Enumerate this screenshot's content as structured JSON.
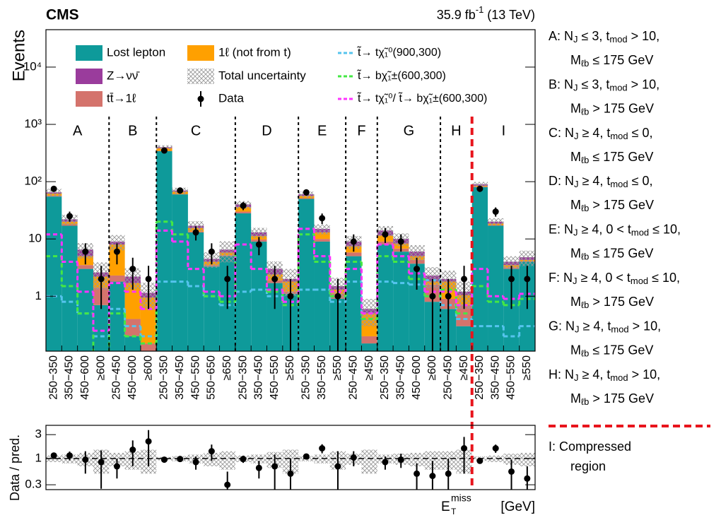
{
  "chart_data": [
    {
      "type": "bar",
      "stacked": true,
      "log_scale": true,
      "title": "CMS",
      "luminosity": [
        {
          "text": "35.9 fb"
        },
        {
          "sup": "-1"
        },
        {
          "text": " (13 TeV)"
        }
      ],
      "y_label": "Events",
      "groups": [
        {
          "name": "A",
          "categories": [
            "250−350",
            "350−450",
            "450−600",
            "≥600"
          ]
        },
        {
          "name": "B",
          "categories": [
            "250−450",
            "450−600",
            "≥600"
          ]
        },
        {
          "name": "C",
          "categories": [
            "250−350",
            "350−450",
            "450−550",
            "550−650",
            "≥650"
          ]
        },
        {
          "name": "D",
          "categories": [
            "250−350",
            "350−450",
            "450−550",
            "≥550"
          ]
        },
        {
          "name": "E",
          "categories": [
            "250−350",
            "350−550",
            "≥550"
          ]
        },
        {
          "name": "F",
          "categories": [
            "250−450",
            "≥450"
          ]
        },
        {
          "name": "G",
          "categories": [
            "250−350",
            "350−450",
            "450−600",
            "≥600"
          ]
        },
        {
          "name": "H",
          "categories": [
            "250−450",
            "≥450"
          ]
        },
        {
          "name": "I",
          "categories": [
            "250−350",
            "350−450",
            "450−550",
            "≥550"
          ]
        }
      ],
      "series": [
        {
          "name": "Lost lepton",
          "type": "stack",
          "color": "#0e9a9a",
          "values": [
            55,
            17,
            3,
            0.7,
            1.8,
            0.2,
            0.1,
            340,
            60,
            13,
            3.3,
            5,
            28,
            9,
            1.7,
            1.1,
            50,
            9,
            0.9,
            5,
            0.15,
            8,
            6,
            3.7,
            0.8,
            0.6,
            0.3,
            80,
            17,
            3,
            4
          ]
        },
        {
          "name": "tt̄→1ℓ",
          "type": "stack",
          "color": "#d4736c",
          "values": [
            2,
            1,
            0.5,
            0.7,
            0.5,
            0.2,
            0.05,
            5,
            1,
            0.5,
            0.2,
            0.2,
            2,
            0.8,
            0.2,
            0.1,
            1.5,
            1,
            0.2,
            0.8,
            0.05,
            1,
            0.8,
            0.6,
            0.8,
            0.3,
            0.4,
            2,
            0.5,
            0.2,
            0.1
          ]
        },
        {
          "name": "1ℓ (not from t)",
          "type": "stack",
          "color": "#ffa000",
          "values": [
            5,
            2,
            1.5,
            0.8,
            5.7,
            1.3,
            0.8,
            40,
            6,
            2,
            0.5,
            0.6,
            6,
            1.5,
            0.5,
            0.6,
            5,
            3,
            0.2,
            1.7,
            0.3,
            2.5,
            1.5,
            0.7,
            0.2,
            0.9,
            0.35,
            3,
            1,
            0.3,
            0.2
          ]
        },
        {
          "name": "Z→νν̄",
          "type": "stack",
          "color": "#9a3c9c",
          "values": [
            3,
            2,
            1.5,
            0.4,
            1,
            0.5,
            0.2,
            15,
            3,
            1.5,
            0.5,
            0.7,
            4,
            1.7,
            0.6,
            0.2,
            3.5,
            2,
            0.2,
            1.5,
            0.1,
            2.5,
            1.7,
            1,
            0.5,
            0.2,
            0.15,
            5,
            1.5,
            0.5,
            0.5
          ]
        },
        {
          "name": "t̃→ tχ̃₁⁰(900,300)",
          "type": "step",
          "color": "#55c4ee",
          "values": [
            1,
            0.8,
            0.5,
            0.2,
            0.6,
            0.3,
            0.2,
            1.8,
            1.8,
            1.5,
            1,
            0.7,
            1.2,
            1.3,
            1,
            0.8,
            1.3,
            1.3,
            0.8,
            1.8,
            0.5,
            1.8,
            1.7,
            1.6,
            1.9,
            0.7,
            0.4,
            0.3,
            0.3,
            0.2,
            0.3
          ]
        },
        {
          "name": "t̃→ bχ̃₁±(600,300)",
          "type": "step",
          "color": "#44e844",
          "values": [
            5,
            1.5,
            0.5,
            0.1,
            0.5,
            0.2,
            0.15,
            20,
            12,
            3,
            1,
            0.8,
            8,
            3,
            1.2,
            0.7,
            12,
            4,
            1,
            4,
            0.4,
            5,
            4,
            2,
            1,
            1.3,
            0.5,
            1.5,
            0.8,
            0.7,
            0.9
          ]
        },
        {
          "name": "t̃→ tχ̃₁⁰/ t̃→ bχ̃₁±(600,300)",
          "type": "step",
          "color": "#ff33ff",
          "values": [
            12,
            4,
            1.2,
            0.25,
            1.7,
            1.2,
            0.6,
            14,
            9,
            3,
            1.2,
            1,
            8,
            3,
            1.3,
            0.8,
            15,
            5,
            1.2,
            3,
            0.5,
            8,
            5,
            2.5,
            1.2,
            1.2,
            0.7,
            3,
            1,
            0.9,
            1.1
          ]
        },
        {
          "name": "Data",
          "type": "points",
          "color": "#000000",
          "values": [
            75,
            25,
            6,
            2,
            6,
            3,
            2,
            350,
            70,
            13,
            6,
            2,
            38,
            8,
            2,
            1,
            65,
            23,
            1,
            9,
            null,
            12,
            9,
            3,
            1,
            1,
            2,
            75,
            30,
            2,
            2
          ],
          "errors": [
            8.7,
            5,
            2.4,
            1.4,
            2.4,
            1.7,
            1.4,
            18.7,
            8.4,
            3.6,
            2.4,
            1.4,
            6.2,
            2.8,
            1.4,
            1,
            8.1,
            4.8,
            1,
            3,
            null,
            3.5,
            3,
            1.7,
            1,
            1,
            1.4,
            8.7,
            5.5,
            1.4,
            1.4
          ]
        }
      ],
      "uncertainty_label": "Total uncertainty",
      "uncertainty": [
        0.15,
        0.2,
        0.3,
        0.5,
        0.3,
        0.4,
        0.5,
        0.08,
        0.12,
        0.2,
        0.3,
        0.4,
        0.15,
        0.2,
        0.35,
        0.5,
        0.12,
        0.2,
        0.4,
        0.25,
        0.5,
        0.2,
        0.25,
        0.3,
        0.4,
        0.4,
        0.5,
        0.1,
        0.15,
        0.25,
        0.3
      ],
      "ylim": [
        0.11,
        45000
      ],
      "yticks": [
        1,
        10,
        {
          "value": 100,
          "label": "10²"
        },
        {
          "value": 1000,
          "label": "10³"
        },
        {
          "value": 10000,
          "label": "10⁴"
        }
      ],
      "region_definitions": [
        [
          [
            {
              "text": "A: N"
            },
            {
              "sub": "J"
            },
            {
              "text": " ≤ 3, t"
            },
            {
              "sub": "mod"
            },
            {
              "text": " > 10,"
            }
          ],
          [
            {
              "text": "M"
            },
            {
              "sub": "ℓb"
            },
            {
              "text": " ≤ 175 GeV"
            }
          ]
        ],
        [
          [
            {
              "text": "B: N"
            },
            {
              "sub": "J"
            },
            {
              "text": " ≤ 3, t"
            },
            {
              "sub": "mod"
            },
            {
              "text": " > 10,"
            }
          ],
          [
            {
              "text": "M"
            },
            {
              "sub": "ℓb"
            },
            {
              "text": " > 175 GeV"
            }
          ]
        ],
        [
          [
            {
              "text": "C: N"
            },
            {
              "sub": "J"
            },
            {
              "text": " ≥ 4, t"
            },
            {
              "sub": "mod"
            },
            {
              "text": " ≤ 0,"
            }
          ],
          [
            {
              "text": "M"
            },
            {
              "sub": "ℓb"
            },
            {
              "text": " ≤ 175 GeV"
            }
          ]
        ],
        [
          [
            {
              "text": "D: N"
            },
            {
              "sub": "J"
            },
            {
              "text": " ≥ 4, t"
            },
            {
              "sub": "mod"
            },
            {
              "text": " ≤ 0,"
            }
          ],
          [
            {
              "text": "M"
            },
            {
              "sub": "ℓb"
            },
            {
              "text": " > 175 GeV"
            }
          ]
        ],
        [
          [
            {
              "text": "E: N"
            },
            {
              "sub": "J"
            },
            {
              "text": " ≥ 4, 0 < t"
            },
            {
              "sub": "mod"
            },
            {
              "text": " ≤ 10,"
            }
          ],
          [
            {
              "text": "M"
            },
            {
              "sub": "ℓb"
            },
            {
              "text": " ≤ 175 GeV"
            }
          ]
        ],
        [
          [
            {
              "text": "F: N"
            },
            {
              "sub": "J"
            },
            {
              "text": " ≥ 4, 0 < t"
            },
            {
              "sub": "mod"
            },
            {
              "text": " ≤ 10,"
            }
          ],
          [
            {
              "text": "M"
            },
            {
              "sub": "ℓb"
            },
            {
              "text": " > 175 GeV"
            }
          ]
        ],
        [
          [
            {
              "text": "G: N"
            },
            {
              "sub": "J"
            },
            {
              "text": " ≥ 4, t"
            },
            {
              "sub": "mod"
            },
            {
              "text": " > 10,"
            }
          ],
          [
            {
              "text": "M"
            },
            {
              "sub": "ℓb"
            },
            {
              "text": " ≤ 175 GeV"
            }
          ]
        ],
        [
          [
            {
              "text": "H: N"
            },
            {
              "sub": "J"
            },
            {
              "text": " ≥ 4, t"
            },
            {
              "sub": "mod"
            },
            {
              "text": " > 10,"
            }
          ],
          [
            {
              "text": "M"
            },
            {
              "sub": "ℓb"
            },
            {
              "text": " > 175 GeV"
            }
          ]
        ],
        [
          [
            {
              "text": "I: Compressed"
            }
          ],
          [
            {
              "text": "region"
            }
          ]
        ]
      ]
    },
    {
      "type": "scatter",
      "log_scale": true,
      "y_label": "Data / pred.",
      "x_label": [
        {
          "text": "E"
        },
        {
          "sup": "miss"
        },
        {
          "sub": "T"
        },
        {
          "text": " [GeV]"
        }
      ],
      "values": [
        1.15,
        1.15,
        0.95,
        0.85,
        0.7,
        1.5,
        2.2,
        0.95,
        0.98,
        0.85,
        1.4,
        0.3,
        0.98,
        0.65,
        0.7,
        0.5,
        1.1,
        1.6,
        0.7,
        1.05,
        null,
        0.85,
        0.95,
        0.5,
        0.45,
        0.5,
        1.6,
        0.9,
        1.6,
        0.55,
        0.4
      ],
      "errors": [
        0.13,
        0.23,
        0.45,
        0.6,
        0.3,
        0.8,
        1.5,
        0.05,
        0.12,
        0.25,
        0.5,
        0.25,
        0.16,
        0.25,
        0.5,
        0.5,
        0.14,
        0.33,
        0.7,
        0.35,
        null,
        0.25,
        0.3,
        0.3,
        0.45,
        0.5,
        1.1,
        0.1,
        0.3,
        0.4,
        0.3
      ],
      "reference_line": 1,
      "ylim": [
        0.24,
        4.6
      ],
      "yticks": [
        0.3,
        1,
        3
      ]
    }
  ]
}
